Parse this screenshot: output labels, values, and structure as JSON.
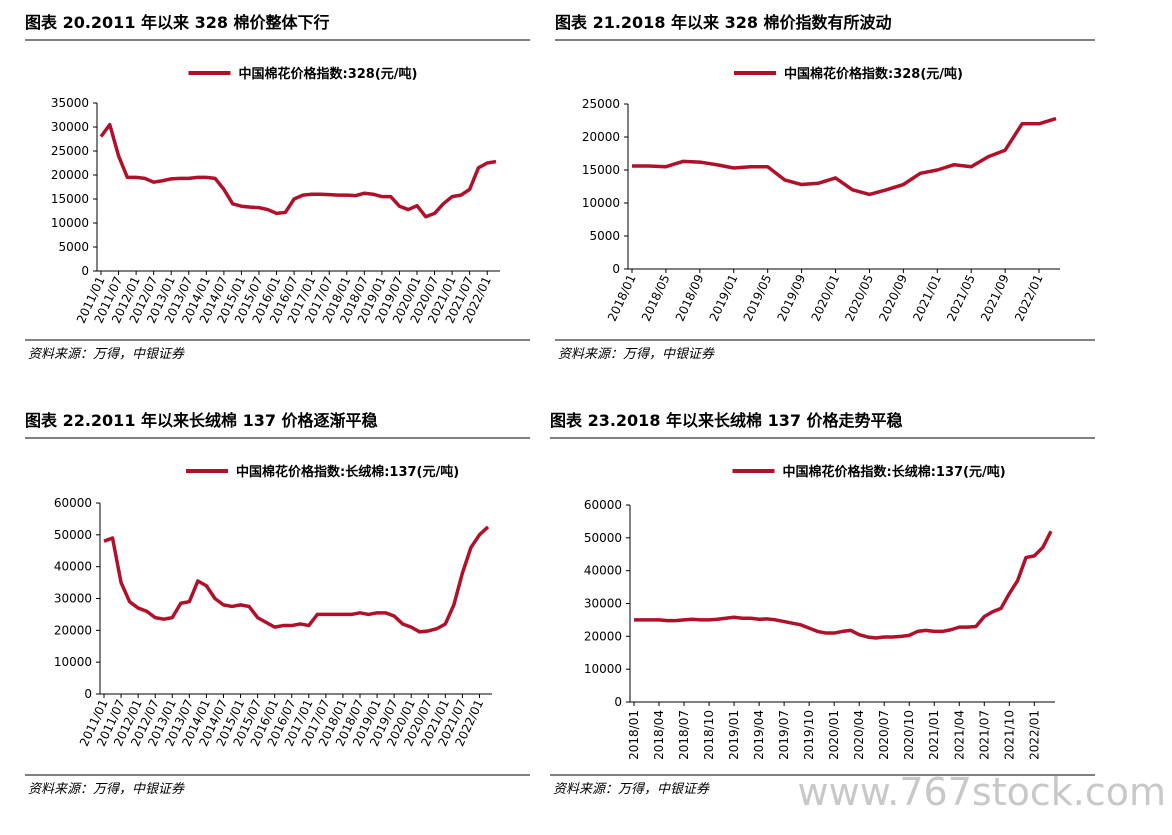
{
  "chart_data": [
    {
      "type": "line",
      "title": "图表 20.2011 年以来 328 棉价整体下行",
      "note": "资料来源：万得，中银证券",
      "categories": [
        "2011/01",
        null,
        "2011/07",
        null,
        "2012/01",
        null,
        "2012/07",
        null,
        "2013/01",
        null,
        "2013/07",
        null,
        "2014/01",
        null,
        "2014/07",
        null,
        "2015/01",
        null,
        "2015/07",
        null,
        "2016/01",
        null,
        "2016/07",
        null,
        "2017/01",
        null,
        "2017/07",
        null,
        "2018/01",
        null,
        "2018/07",
        null,
        "2019/01",
        null,
        "2019/07",
        null,
        "2020/01",
        null,
        "2020/07",
        null,
        "2021/01",
        null,
        "2021/07",
        null,
        "2022/01",
        null
      ],
      "series": [
        {
          "name": "中国棉花价格指数:328(元/吨)",
          "color": "#b0102a",
          "values": [
            28000,
            30500,
            24000,
            19500,
            19500,
            19300,
            18500,
            18800,
            19200,
            19300,
            19300,
            19500,
            19500,
            19300,
            17000,
            14000,
            13500,
            13300,
            13200,
            12800,
            12000,
            12200,
            15000,
            15800,
            16000,
            16000,
            15900,
            15800,
            15800,
            15700,
            16200,
            16000,
            15500,
            15500,
            13500,
            12800,
            13600,
            11300,
            12000,
            14000,
            15500,
            15800,
            17000,
            21500,
            22500,
            22800
          ]
        }
      ],
      "ylim": [
        0,
        35000
      ],
      "yticks": [
        0,
        5000,
        10000,
        15000,
        20000,
        25000,
        30000,
        35000
      ],
      "legend": "top"
    },
    {
      "type": "line",
      "title": "图表 21.2018 年以来 328 棉价指数有所波动",
      "note": "资料来源：万得，中银证券",
      "categories": [
        "2018/01",
        null,
        "2018/05",
        null,
        "2018/09",
        null,
        "2019/01",
        null,
        "2019/05",
        null,
        "2019/09",
        null,
        "2020/01",
        null,
        "2020/05",
        null,
        "2020/09",
        null,
        "2021/01",
        null,
        "2021/05",
        null,
        "2021/09",
        null,
        "2022/01",
        null
      ],
      "series": [
        {
          "name": "中国棉花价格指数:328(元/吨)",
          "color": "#b0102a",
          "values": [
            15600,
            15600,
            15500,
            16300,
            16200,
            15800,
            15300,
            15500,
            15500,
            13500,
            12800,
            13000,
            13800,
            12000,
            11300,
            12000,
            12800,
            14500,
            15000,
            15800,
            15500,
            17000,
            18000,
            22000,
            22000,
            22800
          ]
        }
      ],
      "ylim": [
        0,
        25000
      ],
      "yticks": [
        0,
        5000,
        10000,
        15000,
        20000,
        25000
      ],
      "legend": "top"
    },
    {
      "type": "line",
      "title": "图表 22.2011 年以来长绒棉 137 价格逐渐平稳",
      "note": "资料来源：万得，中银证券",
      "categories": [
        "2011/01",
        null,
        "2011/07",
        null,
        "2012/01",
        null,
        "2012/07",
        null,
        "2013/01",
        null,
        "2013/07",
        null,
        "2014/01",
        null,
        "2014/07",
        null,
        "2015/01",
        null,
        "2015/07",
        null,
        "2016/01",
        null,
        "2016/07",
        null,
        "2017/01",
        null,
        "2017/07",
        null,
        "2018/01",
        null,
        "2018/07",
        null,
        "2019/01",
        null,
        "2019/07",
        null,
        "2020/01",
        null,
        "2020/07",
        null,
        "2021/01",
        null,
        "2021/07",
        null,
        "2022/01",
        null
      ],
      "series": [
        {
          "name": "中国棉花价格指数:长绒棉:137(元/吨)",
          "color": "#b0102a",
          "values": [
            48000,
            49000,
            35000,
            29000,
            27000,
            26000,
            24000,
            23500,
            24000,
            28500,
            29000,
            35500,
            34000,
            30000,
            28000,
            27500,
            28000,
            27500,
            24000,
            22500,
            21000,
            21500,
            21500,
            22000,
            21500,
            25000,
            25000,
            25000,
            25000,
            25000,
            25500,
            25000,
            25500,
            25500,
            24500,
            22000,
            21000,
            19500,
            19800,
            20500,
            22000,
            28000,
            38000,
            46000,
            50000,
            52500
          ]
        }
      ],
      "ylim": [
        0,
        60000
      ],
      "yticks": [
        0,
        10000,
        20000,
        30000,
        40000,
        50000,
        60000
      ],
      "legend": "top"
    },
    {
      "type": "line",
      "title": "图表 23.2018 年以来长绒棉 137 价格走势平稳",
      "note": "资料来源：万得，中银证券",
      "categories": [
        "2018/01",
        null,
        null,
        "2018/04",
        null,
        null,
        "2018/07",
        null,
        null,
        "2018/10",
        null,
        null,
        "2019/01",
        null,
        null,
        "2019/04",
        null,
        null,
        "2019/07",
        null,
        null,
        "2019/10",
        null,
        null,
        "2020/01",
        null,
        null,
        "2020/04",
        null,
        null,
        "2020/07",
        null,
        null,
        "2020/10",
        null,
        null,
        "2021/01",
        null,
        null,
        "2021/04",
        null,
        null,
        "2021/07",
        null,
        null,
        "2021/10",
        null,
        null,
        "2022/01",
        null,
        null
      ],
      "series": [
        {
          "name": "中国棉花价格指数:长绒棉:137(元/吨)",
          "color": "#b0102a",
          "values": [
            25000,
            25000,
            25000,
            25000,
            24800,
            24800,
            25000,
            25200,
            25000,
            25000,
            25200,
            25500,
            25800,
            25500,
            25500,
            25200,
            25300,
            25000,
            24500,
            24000,
            23500,
            22500,
            21500,
            21000,
            21000,
            21500,
            21800,
            20500,
            19800,
            19500,
            19800,
            19800,
            20000,
            20300,
            21500,
            21800,
            21500,
            21500,
            22000,
            22800,
            22800,
            23000,
            26000,
            27500,
            28500,
            33000,
            37000,
            44000,
            44500,
            47000,
            52000
          ]
        }
      ],
      "ylim": [
        0,
        60000
      ],
      "yticks": [
        0,
        10000,
        20000,
        30000,
        40000,
        50000,
        60000
      ],
      "legend": "top"
    }
  ],
  "watermark": "www.767stock.com"
}
